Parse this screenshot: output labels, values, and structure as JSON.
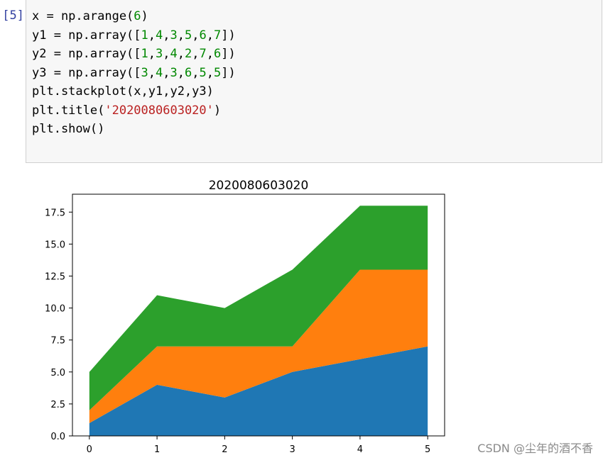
{
  "cell": {
    "prompt": "[5]:",
    "lines": [
      [
        {
          "t": "x = np.arange("
        },
        {
          "t": "6",
          "c": "num"
        },
        {
          "t": ")"
        }
      ],
      [
        {
          "t": "y1 = np.array(["
        },
        {
          "t": "1",
          "c": "num"
        },
        {
          "t": ","
        },
        {
          "t": "4",
          "c": "num"
        },
        {
          "t": ","
        },
        {
          "t": "3",
          "c": "num"
        },
        {
          "t": ","
        },
        {
          "t": "5",
          "c": "num"
        },
        {
          "t": ","
        },
        {
          "t": "6",
          "c": "num"
        },
        {
          "t": ","
        },
        {
          "t": "7",
          "c": "num"
        },
        {
          "t": "])"
        }
      ],
      [
        {
          "t": "y2 = np.array(["
        },
        {
          "t": "1",
          "c": "num"
        },
        {
          "t": ","
        },
        {
          "t": "3",
          "c": "num"
        },
        {
          "t": ","
        },
        {
          "t": "4",
          "c": "num"
        },
        {
          "t": ","
        },
        {
          "t": "2",
          "c": "num"
        },
        {
          "t": ","
        },
        {
          "t": "7",
          "c": "num"
        },
        {
          "t": ","
        },
        {
          "t": "6",
          "c": "num"
        },
        {
          "t": "])"
        }
      ],
      [
        {
          "t": "y3 = np.array(["
        },
        {
          "t": "3",
          "c": "num"
        },
        {
          "t": ","
        },
        {
          "t": "4",
          "c": "num"
        },
        {
          "t": ","
        },
        {
          "t": "3",
          "c": "num"
        },
        {
          "t": ","
        },
        {
          "t": "6",
          "c": "num"
        },
        {
          "t": ","
        },
        {
          "t": "5",
          "c": "num"
        },
        {
          "t": ","
        },
        {
          "t": "5",
          "c": "num"
        },
        {
          "t": "])"
        }
      ],
      [
        {
          "t": "plt.stackplot(x,y1,y2,y3)"
        }
      ],
      [
        {
          "t": "plt.title("
        },
        {
          "t": "'2020080603020'",
          "c": "str"
        },
        {
          "t": ")"
        }
      ],
      [
        {
          "t": "plt.show()"
        }
      ]
    ]
  },
  "chart_data": {
    "type": "area",
    "title": "2020080603020",
    "x": [
      0,
      1,
      2,
      3,
      4,
      5
    ],
    "series": [
      {
        "values": [
          1,
          4,
          3,
          5,
          6,
          7
        ],
        "color": "#1f77b4"
      },
      {
        "values": [
          1,
          3,
          4,
          2,
          7,
          6
        ],
        "color": "#ff7f0e"
      },
      {
        "values": [
          3,
          4,
          3,
          6,
          5,
          5
        ],
        "color": "#2ca02c"
      }
    ],
    "stacked": true,
    "xlim": [
      -0.25,
      5.25
    ],
    "ylim": [
      0,
      18.9
    ],
    "xticks": [
      "0",
      "1",
      "2",
      "3",
      "4",
      "5"
    ],
    "yticks": [
      "0.0",
      "2.5",
      "5.0",
      "7.5",
      "10.0",
      "12.5",
      "15.0",
      "17.5"
    ],
    "grid": false,
    "legend": false
  },
  "watermark": "CSDN @尘年的酒不香"
}
